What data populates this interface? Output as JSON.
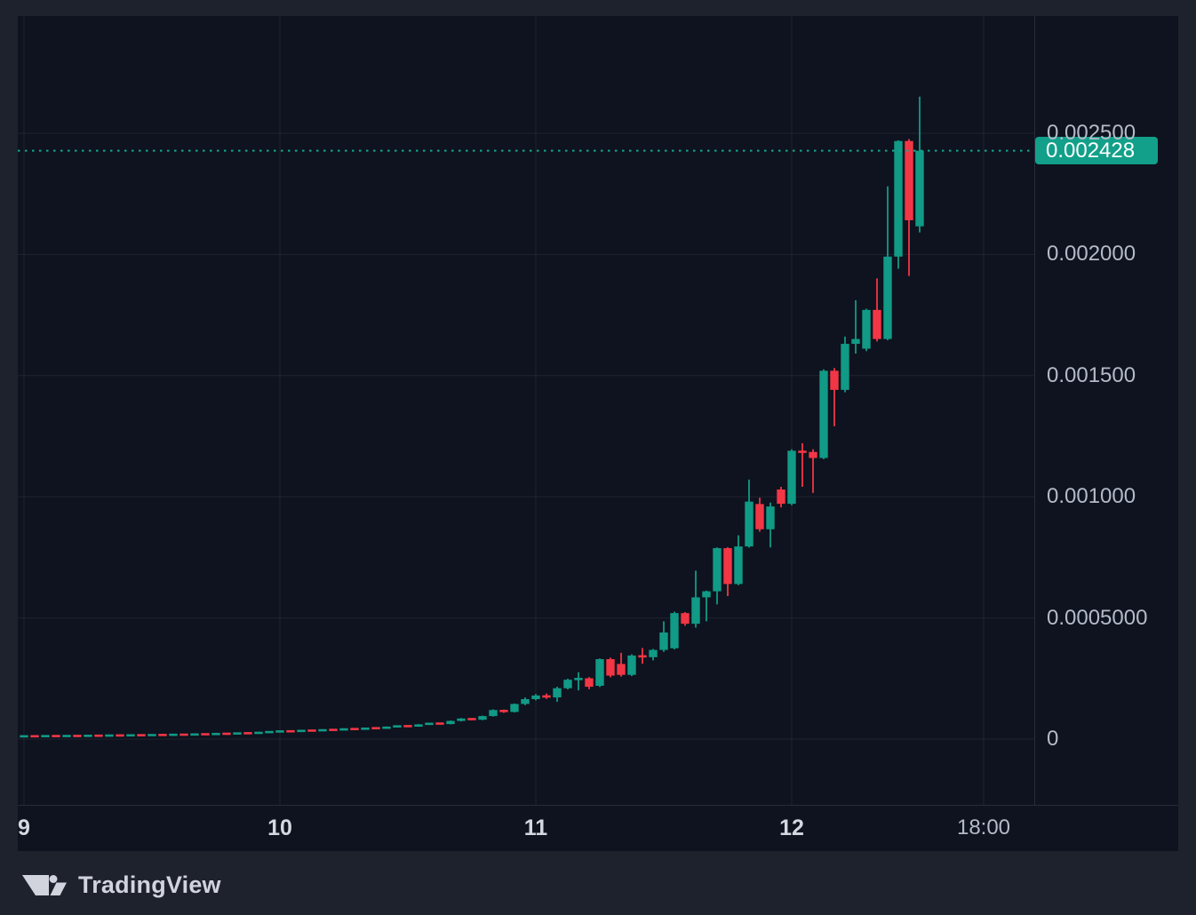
{
  "footer": {
    "logo_text": "TradingView"
  },
  "chart_data": {
    "type": "candlestick",
    "title": "",
    "legend_position": "none",
    "grid": true,
    "price_scale_side": "right",
    "price_unit": 1e-06,
    "last_price": "0.002428",
    "last_price_micro": 2428,
    "candles_per_day": 24,
    "y_axis": {
      "ticks": [
        {
          "label": "0.002500",
          "value_micro": 2500
        },
        {
          "label": "0.002000",
          "value_micro": 2000
        },
        {
          "label": "0.001500",
          "value_micro": 1500
        },
        {
          "label": "0.001000",
          "value_micro": 1000
        },
        {
          "label": "0.0005000",
          "value_micro": 500
        },
        {
          "label": "0",
          "value_micro": 0
        }
      ],
      "range_micro": [
        -300,
        2980
      ]
    },
    "x_axis": {
      "ticks": [
        {
          "label": "9",
          "hour": 0,
          "bold": true
        },
        {
          "label": "10",
          "hour": 24,
          "bold": true
        },
        {
          "label": "11",
          "hour": 48,
          "bold": true
        },
        {
          "label": "12",
          "hour": 72,
          "bold": true
        },
        {
          "label": "18:00",
          "hour": 90,
          "bold": false
        }
      ]
    },
    "colors": {
      "up": "#119a85",
      "down": "#f23645",
      "last_price_line": "#14a88e",
      "badge_bg": "#12a08a",
      "badge_text": "#ffffff",
      "background": "#0e131f",
      "page_background": "#1e222d",
      "grid": "rgba(255,255,255,0.07)",
      "axis_border": "#262c3a",
      "axis_text": "#b4bac7",
      "axis_text_bold": "#d4d8e0",
      "logo": "#d1d4dc"
    },
    "candles_ohlc_micro": [
      [
        11,
        13,
        10,
        12
      ],
      [
        12,
        13.5,
        10.5,
        11.5
      ],
      [
        11.5,
        14,
        11,
        13
      ],
      [
        13,
        14,
        11.5,
        12
      ],
      [
        12,
        14.5,
        11.5,
        13.5
      ],
      [
        13.5,
        14.5,
        12,
        12.5
      ],
      [
        12.5,
        15.5,
        12,
        14.5
      ],
      [
        14.5,
        15.5,
        12.5,
        13.5
      ],
      [
        13.5,
        16.5,
        13,
        15.5
      ],
      [
        15.5,
        16,
        13.5,
        14.5
      ],
      [
        14.5,
        17.5,
        14,
        16.5
      ],
      [
        16.5,
        17,
        14.5,
        15.5
      ],
      [
        15.5,
        18.5,
        15,
        17.5
      ],
      [
        17.5,
        18,
        15.5,
        16.5
      ],
      [
        16.5,
        20,
        16,
        19
      ],
      [
        19,
        19.5,
        16.5,
        17.5
      ],
      [
        17.5,
        21.5,
        17,
        20.5
      ],
      [
        20.5,
        21,
        18,
        19.5
      ],
      [
        19.5,
        23.5,
        19,
        22.5
      ],
      [
        22.5,
        23,
        20,
        21.5
      ],
      [
        21.5,
        26,
        21,
        25
      ],
      [
        25,
        25.5,
        22.5,
        23.5
      ],
      [
        23.5,
        29,
        23,
        28
      ],
      [
        28,
        31,
        26.5,
        30
      ],
      [
        30,
        34.5,
        29,
        33
      ],
      [
        33,
        34,
        30,
        31.5
      ],
      [
        31.5,
        37.5,
        31,
        36
      ],
      [
        36,
        37,
        32.5,
        34
      ],
      [
        34,
        40.5,
        33.5,
        39
      ],
      [
        39,
        40,
        35.5,
        37
      ],
      [
        37,
        44.5,
        36.5,
        43
      ],
      [
        43,
        44,
        38.5,
        40
      ],
      [
        40,
        47.5,
        39.5,
        46
      ],
      [
        46,
        47,
        42,
        44
      ],
      [
        44,
        52,
        43,
        50
      ],
      [
        50,
        57,
        48,
        55
      ],
      [
        55,
        56.5,
        50,
        52
      ],
      [
        52,
        62,
        51,
        60
      ],
      [
        60,
        68,
        58,
        66
      ],
      [
        66,
        67.5,
        60,
        62
      ],
      [
        62,
        77,
        61,
        75
      ],
      [
        75,
        87,
        73,
        85
      ],
      [
        85,
        86,
        77,
        80
      ],
      [
        80,
        97,
        78,
        95
      ],
      [
        95,
        123,
        93,
        120
      ],
      [
        120,
        122,
        108,
        112
      ],
      [
        112,
        147,
        110,
        145
      ],
      [
        145,
        172,
        140,
        165
      ],
      [
        165,
        186,
        160,
        180
      ],
      [
        180,
        188,
        166,
        172
      ],
      [
        172,
        216,
        154,
        210
      ],
      [
        210,
        249,
        205,
        245
      ],
      [
        245,
        276,
        201,
        251
      ],
      [
        251,
        256,
        206,
        216
      ],
      [
        220,
        333,
        215,
        330
      ],
      [
        330,
        336,
        255,
        262
      ],
      [
        310,
        356,
        258,
        265
      ],
      [
        265,
        350,
        260,
        345
      ],
      [
        345,
        376,
        311,
        338
      ],
      [
        338,
        372,
        325,
        368
      ],
      [
        368,
        486,
        360,
        440
      ],
      [
        375,
        526,
        370,
        520
      ],
      [
        520,
        524,
        468,
        476
      ],
      [
        476,
        695,
        460,
        585
      ],
      [
        585,
        613,
        486,
        610
      ],
      [
        610,
        791,
        556,
        788
      ],
      [
        788,
        792,
        590,
        640
      ],
      [
        640,
        841,
        635,
        795
      ],
      [
        795,
        1071,
        790,
        980
      ],
      [
        970,
        996,
        856,
        866
      ],
      [
        866,
        976,
        791,
        960
      ],
      [
        1030,
        1041,
        956,
        971
      ],
      [
        971,
        1196,
        965,
        1190
      ],
      [
        1190,
        1221,
        1041,
        1181
      ],
      [
        1185,
        1196,
        1016,
        1160
      ],
      [
        1160,
        1526,
        1155,
        1520
      ],
      [
        1520,
        1531,
        1291,
        1441
      ],
      [
        1441,
        1661,
        1431,
        1631
      ],
      [
        1631,
        1811,
        1591,
        1651
      ],
      [
        1611,
        1776,
        1601,
        1771
      ],
      [
        1771,
        1901,
        1641,
        1651
      ],
      [
        1651,
        2281,
        1646,
        1991
      ],
      [
        1991,
        2471,
        1941,
        2468
      ],
      [
        2468,
        2476,
        1911,
        2141
      ],
      [
        2116,
        2651,
        2091,
        2428
      ]
    ]
  }
}
